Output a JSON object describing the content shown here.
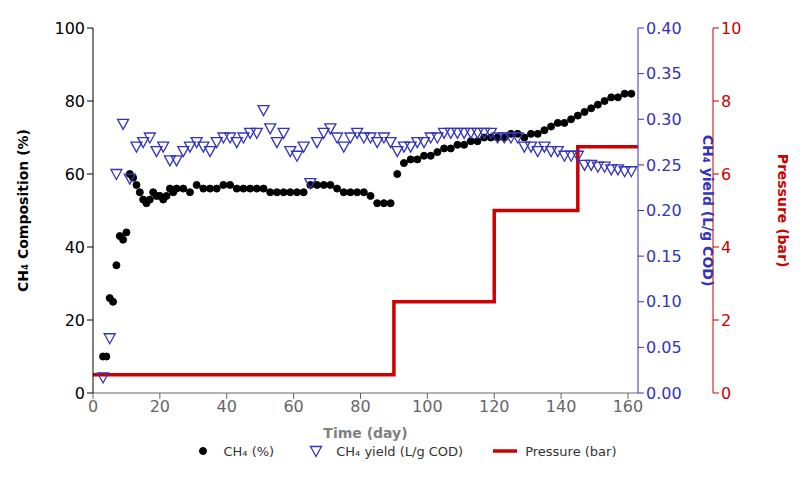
{
  "chart_data": {
    "type": "scatter",
    "xlabel": "Time (day)",
    "ylabel": "CH₄ Composition (%)",
    "y2label": "CH₄ yield (L/g COD)",
    "y3label": "Pressure (bar)",
    "xlim": [
      0,
      163
    ],
    "xticks": [
      0,
      20,
      40,
      60,
      80,
      100,
      120,
      140,
      160
    ],
    "ylim": [
      0,
      100
    ],
    "yticks": [
      0,
      20,
      40,
      60,
      80,
      100
    ],
    "y2lim": [
      0.0,
      0.4
    ],
    "y2ticks": [
      {
        "value": 0,
        "label": "0.00"
      },
      0.05,
      {
        "value": 0.1,
        "label": "0.10"
      },
      0.15,
      {
        "value": 0.2,
        "label": "0.20"
      },
      0.25,
      {
        "value": 0.3,
        "label": "0.30"
      },
      0.35,
      {
        "value": 0.4,
        "label": "0.40"
      }
    ],
    "y3lim": [
      0,
      10
    ],
    "y3ticks": [
      0,
      2,
      4,
      6,
      8,
      10
    ],
    "grid": false,
    "legend": "bottom",
    "series": [
      {
        "name": "CH₄ (%)",
        "type": "scatter",
        "marker": "circle",
        "color": "#000000",
        "axis": "y",
        "x": [
          3,
          4,
          5,
          6,
          7,
          8,
          9,
          10,
          11,
          12,
          13,
          14,
          15,
          16,
          17,
          18,
          19,
          20,
          21,
          22,
          23,
          24,
          25,
          27,
          29,
          31,
          33,
          35,
          37,
          39,
          41,
          43,
          45,
          47,
          49,
          51,
          53,
          55,
          57,
          59,
          61,
          63,
          65,
          67,
          69,
          71,
          73,
          75,
          77,
          79,
          81,
          83,
          85,
          87,
          89,
          91,
          93,
          95,
          97,
          99,
          101,
          103,
          105,
          107,
          109,
          111,
          113,
          115,
          117,
          119,
          121,
          123,
          125,
          127,
          129,
          131,
          133,
          135,
          137,
          139,
          141,
          143,
          145,
          147,
          149,
          151,
          153,
          155,
          157,
          159,
          161
        ],
        "values": [
          10,
          10,
          26,
          25,
          35,
          43,
          42,
          44,
          60,
          59,
          57,
          55,
          53,
          52,
          53,
          55,
          54,
          54,
          53,
          54,
          56,
          55,
          56,
          56,
          55,
          57,
          56,
          56,
          56,
          57,
          57,
          56,
          56,
          56,
          56,
          56,
          55,
          55,
          55,
          55,
          55,
          55,
          57,
          57,
          57,
          57,
          56,
          55,
          55,
          55,
          55,
          54,
          52,
          52,
          52,
          60,
          63,
          64,
          64,
          65,
          65,
          66,
          67,
          67,
          68,
          68,
          69,
          69,
          70,
          70,
          70,
          70,
          71,
          71,
          70,
          71,
          71,
          72,
          73,
          74,
          74,
          75,
          76,
          77,
          78,
          79,
          80,
          81,
          81,
          82,
          82
        ]
      },
      {
        "name": "CH₄ yield (L/g COD)",
        "type": "scatter",
        "marker": "triangle_down",
        "color": "#3333BB",
        "axis": "y2",
        "x": [
          3,
          5,
          7,
          9,
          11,
          13,
          15,
          17,
          19,
          21,
          23,
          25,
          27,
          29,
          31,
          33,
          35,
          37,
          39,
          41,
          43,
          45,
          47,
          49,
          51,
          53,
          55,
          57,
          59,
          61,
          63,
          65,
          67,
          69,
          71,
          73,
          75,
          77,
          79,
          81,
          83,
          85,
          87,
          89,
          91,
          93,
          95,
          97,
          99,
          101,
          103,
          105,
          107,
          109,
          111,
          113,
          115,
          117,
          119,
          121,
          123,
          125,
          127,
          129,
          131,
          133,
          135,
          137,
          139,
          141,
          143,
          145,
          147,
          149,
          151,
          153,
          155,
          157,
          159,
          161
        ],
        "values": [
          0.017,
          0.06,
          0.24,
          0.295,
          0.235,
          0.27,
          0.275,
          0.28,
          0.265,
          0.27,
          0.255,
          0.255,
          0.265,
          0.27,
          0.275,
          0.27,
          0.265,
          0.275,
          0.28,
          0.28,
          0.275,
          0.28,
          0.285,
          0.285,
          0.31,
          0.29,
          0.275,
          0.285,
          0.265,
          0.26,
          0.27,
          0.23,
          0.275,
          0.285,
          0.29,
          0.28,
          0.27,
          0.28,
          0.285,
          0.28,
          0.28,
          0.275,
          0.28,
          0.275,
          0.265,
          0.27,
          0.27,
          0.275,
          0.275,
          0.28,
          0.28,
          0.285,
          0.285,
          0.285,
          0.285,
          0.285,
          0.285,
          0.285,
          0.285,
          0.28,
          0.28,
          0.28,
          0.28,
          0.27,
          0.27,
          0.265,
          0.27,
          0.265,
          0.265,
          0.26,
          0.26,
          0.26,
          0.25,
          0.25,
          0.248,
          0.248,
          0.245,
          0.245,
          0.243,
          0.243
        ]
      },
      {
        "name": "Pressure (bar)",
        "type": "line",
        "line_style": "solid",
        "color": "#CC0000",
        "axis": "y3",
        "x": [
          0,
          90,
          90,
          120,
          120,
          145,
          145,
          163
        ],
        "values": [
          0.5,
          0.5,
          2.5,
          2.5,
          5.0,
          5.0,
          6.75,
          6.75
        ]
      }
    ]
  }
}
